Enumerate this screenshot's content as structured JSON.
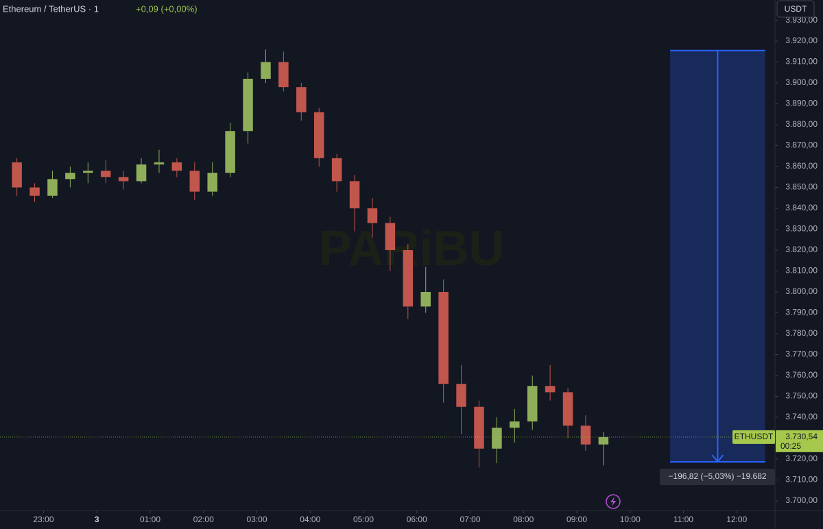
{
  "chart_data": {
    "type": "candlestick",
    "title": "Ethereum / TetherUS · 1",
    "change": "+0,09 (+0,00%)",
    "currency": "USDT",
    "symbol": "ETHUSDT",
    "watermark": "PARiBU",
    "x": [
      "22:20",
      "22:40",
      "23:00",
      "23:20",
      "23:40",
      "00:00",
      "00:20",
      "00:40",
      "01:00",
      "01:20",
      "01:40",
      "02:00",
      "02:20",
      "02:40",
      "03:00",
      "03:20",
      "03:40",
      "04:00",
      "04:20",
      "04:40",
      "05:00",
      "05:20",
      "05:40",
      "06:00",
      "06:20",
      "06:40",
      "07:00",
      "07:20",
      "07:40",
      "08:00",
      "08:20",
      "08:40",
      "09:00",
      "09:20"
    ],
    "open": [
      3862,
      3850,
      3846,
      3854,
      3857,
      3858,
      3855,
      3853,
      3861,
      3862,
      3858,
      3848,
      3857,
      3877,
      3902,
      3910,
      3898,
      3886,
      3864,
      3853,
      3840,
      3833,
      3820,
      3793,
      3800,
      3756,
      3745,
      3725,
      3735,
      3738,
      3755,
      3752,
      3736,
      3727
    ],
    "high": [
      3864,
      3852,
      3858,
      3860,
      3862,
      3863,
      3858,
      3864,
      3868,
      3864,
      3862,
      3862,
      3881,
      3905,
      3916,
      3915,
      3900,
      3888,
      3866,
      3856,
      3845,
      3836,
      3823,
      3812,
      3806,
      3765,
      3748,
      3740,
      3744,
      3760,
      3765,
      3754,
      3741,
      3733
    ],
    "low": [
      3846,
      3843,
      3845,
      3850,
      3852,
      3852,
      3849,
      3852,
      3857,
      3855,
      3844,
      3846,
      3855,
      3871,
      3900,
      3896,
      3882,
      3860,
      3848,
      3829,
      3826,
      3810,
      3787,
      3790,
      3747,
      3732,
      3716,
      3718,
      3728,
      3734,
      3748,
      3730,
      3724,
      3717
    ],
    "close": [
      3850,
      3846,
      3854,
      3857,
      3858,
      3855,
      3853,
      3861,
      3862,
      3858,
      3848,
      3857,
      3877,
      3902,
      3910,
      3898,
      3886,
      3864,
      3853,
      3840,
      3833,
      3820,
      3793,
      3800,
      3756,
      3745,
      3725,
      3735,
      3738,
      3755,
      3752,
      3736,
      3727,
      3730.54
    ],
    "up_color": "#8fae5a",
    "down_color": "#c0564c",
    "xlim": [
      "22:11",
      "12:43"
    ],
    "xticks": [
      "23:00",
      {
        "value": "00:00",
        "label": "3"
      },
      "01:00",
      "02:00",
      "03:00",
      "04:00",
      "05:00",
      "06:00",
      "07:00",
      "08:00",
      "09:00",
      "10:00",
      "11:00",
      "12:00"
    ],
    "ylim": [
      3695.4,
      3939.7
    ],
    "yticks": [
      {
        "value": 3700,
        "label": "3.700,00"
      },
      {
        "value": 3710,
        "label": "3.710,00"
      },
      {
        "value": 3720,
        "label": "3.720,00"
      },
      {
        "value": 3730,
        "label": "3.730,00"
      },
      {
        "value": 3740,
        "label": "3.740,00"
      },
      {
        "value": 3750,
        "label": "3.750,00"
      },
      {
        "value": 3760,
        "label": "3.760,00"
      },
      {
        "value": 3770,
        "label": "3.770,00"
      },
      {
        "value": 3780,
        "label": "3.780,00"
      },
      {
        "value": 3790,
        "label": "3.790,00"
      },
      {
        "value": 3800,
        "label": "3.800,00"
      },
      {
        "value": 3810,
        "label": "3.810,00"
      },
      {
        "value": 3820,
        "label": "3.820,00"
      },
      {
        "value": 3830,
        "label": "3.830,00"
      },
      {
        "value": 3840,
        "label": "3.840,00"
      },
      {
        "value": 3850,
        "label": "3.850,00"
      },
      {
        "value": 3860,
        "label": "3.860,00"
      },
      {
        "value": 3870,
        "label": "3.870,00"
      },
      {
        "value": 3880,
        "label": "3.880,00"
      },
      {
        "value": 3890,
        "label": "3.890,00"
      },
      {
        "value": 3900,
        "label": "3.900,00"
      },
      {
        "value": 3910,
        "label": "3.910,00"
      },
      {
        "value": 3920,
        "label": "3.920,00"
      },
      {
        "value": 3930,
        "label": "3.930,00"
      }
    ],
    "last_price": {
      "value": 3730.54,
      "label": "3.730,54"
    },
    "countdown": "00:25",
    "last_color": "#a5c84d",
    "measure": {
      "from": 3915.5,
      "to": 3718.68,
      "start": "10:45",
      "end": "12:32",
      "label": "−196,82 (−5,03%) −19.682",
      "color": "#2962ff"
    }
  }
}
